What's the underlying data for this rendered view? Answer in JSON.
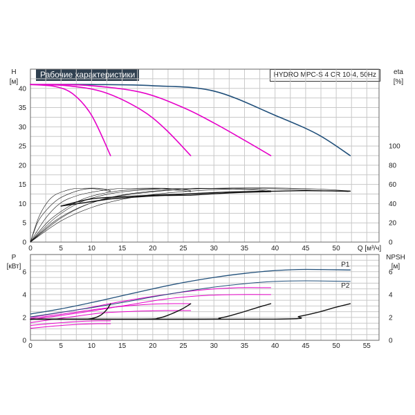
{
  "header": {
    "title": "Рабочие характеристики",
    "model": "HYDRO MPC-S 4 CR 10-4, 50Hz"
  },
  "colors": {
    "nav": "#1f4e79",
    "magenta": "#e600c8",
    "black": "#111111",
    "grid": "#c8c8c8"
  },
  "chart_data": [
    {
      "type": "line",
      "name": "top",
      "left_axis": {
        "label": "H",
        "unit": "[м]",
        "ticks": [
          0,
          5,
          10,
          15,
          20,
          25,
          30,
          35,
          40
        ],
        "range": [
          0,
          45
        ]
      },
      "right_axis": {
        "label": "eta",
        "unit": "[%]",
        "ticks": [
          0,
          20,
          40,
          60,
          80,
          100
        ]
      },
      "x_axis": {
        "label": "Q",
        "unit": "[м³/ч]",
        "ticks": [
          0,
          5,
          10,
          15,
          20,
          25,
          30,
          35,
          40,
          45,
          50
        ],
        "range": [
          0,
          57
        ]
      },
      "head_curves": [
        {
          "color": "navy",
          "points": [
            [
              0,
              41
            ],
            [
              10,
              41
            ],
            [
              20,
              40.7
            ],
            [
              30,
              39.3
            ],
            [
              40,
              33
            ],
            [
              47,
              28
            ],
            [
              52.3,
              22.5
            ]
          ]
        },
        {
          "color": "magenta",
          "points": [
            [
              0,
              41
            ],
            [
              9,
              40.8
            ],
            [
              18,
              39
            ],
            [
              25,
              35
            ],
            [
              30,
              31
            ],
            [
              35,
              26.5
            ],
            [
              39.3,
              22.5
            ]
          ]
        },
        {
          "color": "magenta",
          "points": [
            [
              0,
              41
            ],
            [
              6,
              40.7
            ],
            [
              12,
              39
            ],
            [
              18,
              34.5
            ],
            [
              22,
              29.5
            ],
            [
              26.2,
              22.5
            ]
          ]
        },
        {
          "color": "magenta",
          "points": [
            [
              0,
              41
            ],
            [
              4,
              40.5
            ],
            [
              7,
              38.5
            ],
            [
              10,
              33
            ],
            [
              13.1,
              22.5
            ]
          ]
        }
      ],
      "eta_curves": [
        [
          [
            0,
            0
          ],
          [
            5,
            22
          ],
          [
            10,
            36
          ],
          [
            15,
            44.5
          ],
          [
            20,
            49.5
          ],
          [
            26,
            53
          ],
          [
            33,
            55.2
          ],
          [
            40,
            55.5
          ],
          [
            46,
            54
          ],
          [
            52,
            52.5
          ]
        ],
        [
          [
            0,
            0
          ],
          [
            4,
            22
          ],
          [
            8,
            36
          ],
          [
            12,
            44.5
          ],
          [
            16,
            49.5
          ],
          [
            21,
            53
          ],
          [
            26,
            55.2
          ],
          [
            32,
            55.5
          ],
          [
            37,
            54
          ],
          [
            39.3,
            52.5
          ]
        ],
        [
          [
            0,
            0
          ],
          [
            3,
            22
          ],
          [
            6,
            36
          ],
          [
            8.5,
            44.5
          ],
          [
            11,
            49.5
          ],
          [
            14,
            53
          ],
          [
            18,
            55.2
          ],
          [
            21,
            55.5
          ],
          [
            24,
            54
          ],
          [
            26.2,
            52.5
          ]
        ],
        [
          [
            0,
            0
          ],
          [
            1.3,
            22
          ],
          [
            3,
            36
          ],
          [
            4.5,
            44.5
          ],
          [
            6,
            49.5
          ],
          [
            7.5,
            53
          ],
          [
            9,
            55.2
          ],
          [
            10.5,
            55.5
          ],
          [
            12,
            54
          ],
          [
            13.1,
            52.5
          ]
        ],
        [
          [
            0,
            0
          ],
          [
            5,
            25
          ],
          [
            10,
            41
          ],
          [
            15,
            49
          ],
          [
            20,
            53
          ],
          [
            27,
            55.5
          ],
          [
            33,
            56.3
          ],
          [
            40,
            56.3
          ],
          [
            47,
            55.2
          ],
          [
            52.3,
            53.2
          ]
        ],
        [
          [
            0,
            0
          ],
          [
            4,
            25
          ],
          [
            8,
            41
          ],
          [
            12,
            49
          ],
          [
            16,
            53
          ],
          [
            22,
            55.5
          ],
          [
            27,
            56
          ],
          [
            33,
            55.8
          ],
          [
            37,
            55
          ],
          [
            39.3,
            53.5
          ]
        ],
        [
          [
            0,
            0
          ],
          [
            2.5,
            25
          ],
          [
            5,
            41
          ],
          [
            8,
            49
          ],
          [
            11,
            53
          ],
          [
            14,
            55.5
          ],
          [
            18,
            56
          ],
          [
            22,
            56
          ],
          [
            24.5,
            55
          ],
          [
            26.2,
            53.5
          ]
        ],
        [
          [
            0,
            0
          ],
          [
            1.3,
            25
          ],
          [
            2.7,
            41
          ],
          [
            4,
            49
          ],
          [
            5.5,
            53
          ],
          [
            7,
            55.5
          ],
          [
            9,
            56
          ],
          [
            11,
            56
          ],
          [
            12.3,
            55
          ],
          [
            13.1,
            53.5
          ]
        ]
      ],
      "bold_eta": [
        [
          5,
          37.5
        ],
        [
          10,
          45
        ],
        [
          15,
          47.2
        ],
        [
          20,
          48.8
        ],
        [
          25,
          50
        ],
        [
          30,
          51.5
        ],
        [
          35,
          52.5
        ],
        [
          40,
          53
        ],
        [
          45,
          53.5
        ],
        [
          52.3,
          53
        ]
      ],
      "eta_segments": [
        [
          [
            5,
            37.5
          ],
          [
            13.1,
            45
          ]
        ],
        [
          [
            13.1,
            45
          ],
          [
            18,
            47.2
          ],
          [
            22,
            48.5
          ],
          [
            26.2,
            48.8
          ]
        ],
        [
          [
            26.2,
            48.8
          ],
          [
            32,
            51
          ],
          [
            36,
            52
          ],
          [
            39.3,
            52.5
          ]
        ]
      ]
    },
    {
      "type": "line",
      "name": "bottom",
      "left_axis": {
        "label": "P",
        "unit": "[кВт]",
        "ticks": [
          0,
          2,
          4,
          6
        ],
        "range": [
          0,
          7.5
        ]
      },
      "right_axis": {
        "label": "NPSH",
        "unit": "[м]",
        "ticks": [
          0,
          2,
          4,
          6
        ]
      },
      "x_axis": {
        "ticks": [
          0,
          5,
          10,
          15,
          20,
          25,
          30,
          35,
          40,
          45,
          50,
          55
        ],
        "range": [
          0,
          57
        ]
      },
      "p1_label": "P1",
      "p2_label": "P2",
      "p1_curve": [
        [
          0,
          2.3
        ],
        [
          5,
          2.75
        ],
        [
          10,
          3.3
        ],
        [
          15,
          3.9
        ],
        [
          20,
          4.5
        ],
        [
          25,
          5.05
        ],
        [
          30,
          5.5
        ],
        [
          35,
          5.85
        ],
        [
          40,
          6.1
        ],
        [
          45,
          6.2
        ],
        [
          52.3,
          6.15
        ]
      ],
      "p2_curve": [
        [
          0,
          2.05
        ],
        [
          5,
          2.45
        ],
        [
          10,
          2.85
        ],
        [
          15,
          3.3
        ],
        [
          20,
          3.8
        ],
        [
          25,
          4.25
        ],
        [
          30,
          4.65
        ],
        [
          35,
          4.95
        ],
        [
          40,
          5.15
        ],
        [
          45,
          5.2
        ],
        [
          52.3,
          5.15
        ]
      ],
      "magenta_power": [
        [
          [
            0,
            2.0
          ],
          [
            8,
            2.7
          ],
          [
            15,
            3.4
          ],
          [
            22,
            4.0
          ],
          [
            28,
            4.4
          ],
          [
            34,
            4.6
          ],
          [
            39.3,
            4.6
          ]
        ],
        [
          [
            0,
            1.8
          ],
          [
            8,
            2.4
          ],
          [
            15,
            3.0
          ],
          [
            22,
            3.6
          ],
          [
            28,
            3.9
          ],
          [
            34,
            4.0
          ],
          [
            39.3,
            4.0
          ]
        ],
        [
          [
            0,
            1.9
          ],
          [
            6,
            2.35
          ],
          [
            12,
            2.8
          ],
          [
            18,
            3.1
          ],
          [
            22,
            3.2
          ],
          [
            26.2,
            3.2
          ]
        ],
        [
          [
            0,
            1.55
          ],
          [
            6,
            2.0
          ],
          [
            12,
            2.4
          ],
          [
            18,
            2.55
          ],
          [
            22,
            2.6
          ],
          [
            26.2,
            2.6
          ]
        ],
        [
          [
            0,
            1.3
          ],
          [
            4,
            1.5
          ],
          [
            8,
            1.65
          ],
          [
            11,
            1.7
          ],
          [
            13.1,
            1.7
          ]
        ],
        [
          [
            0,
            1.05
          ],
          [
            4,
            1.25
          ],
          [
            8,
            1.4
          ],
          [
            11,
            1.45
          ],
          [
            13.1,
            1.45
          ]
        ]
      ],
      "npsh_curves": [
        [
          [
            0,
            1.85
          ],
          [
            8,
            1.85
          ],
          [
            10,
            1.9
          ],
          [
            11.5,
            2.2
          ],
          [
            12.5,
            2.7
          ],
          [
            13.1,
            3.2
          ]
        ],
        [
          [
            0,
            1.85
          ],
          [
            18,
            1.85
          ],
          [
            21,
            1.95
          ],
          [
            23,
            2.3
          ],
          [
            25,
            2.8
          ],
          [
            26.2,
            3.2
          ]
        ],
        [
          [
            0,
            1.85
          ],
          [
            28,
            1.85
          ],
          [
            31,
            1.95
          ],
          [
            34,
            2.35
          ],
          [
            37,
            2.85
          ],
          [
            39.3,
            3.2
          ]
        ],
        [
          [
            0,
            1.85
          ],
          [
            40,
            1.85
          ],
          [
            44,
            2.1
          ],
          [
            47,
            2.45
          ],
          [
            50,
            2.9
          ],
          [
            52.3,
            3.2
          ]
        ]
      ]
    }
  ]
}
